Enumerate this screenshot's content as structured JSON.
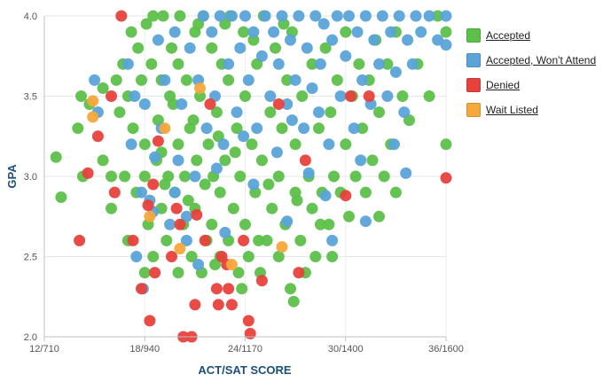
{
  "chart_data": {
    "type": "scatter",
    "xlabel": "ACT/SAT SCORE",
    "ylabel": "GPA",
    "xlim": [
      12,
      36
    ],
    "ylim": [
      2.0,
      4.0
    ],
    "x_ticks": [
      {
        "value": 12,
        "label": "12/710"
      },
      {
        "value": 18,
        "label": "18/940"
      },
      {
        "value": 24,
        "label": "24/1170"
      },
      {
        "value": 30,
        "label": "30/1400"
      },
      {
        "value": 36,
        "label": "36/1600"
      }
    ],
    "y_ticks": [
      {
        "value": 2.0,
        "label": "2.0"
      },
      {
        "value": 2.5,
        "label": "2.5"
      },
      {
        "value": 3.0,
        "label": "3.0"
      },
      {
        "value": 3.5,
        "label": "3.5"
      },
      {
        "value": 4.0,
        "label": "4.0"
      }
    ],
    "grid": true,
    "legend_position": "right",
    "series": [
      {
        "name": "Accepted",
        "color": "#5cc04a",
        "points": [
          [
            12.7,
            3.12
          ],
          [
            13.0,
            2.87
          ],
          [
            14.0,
            3.3
          ],
          [
            14.2,
            3.5
          ],
          [
            14.3,
            3.0
          ],
          [
            14.7,
            3.45
          ],
          [
            15.5,
            3.55
          ],
          [
            15.5,
            3.1
          ],
          [
            16.0,
            2.8
          ],
          [
            16.0,
            3.0
          ],
          [
            16.3,
            3.6
          ],
          [
            16.5,
            3.4
          ],
          [
            16.7,
            3.7
          ],
          [
            16.8,
            3.0
          ],
          [
            17.0,
            2.6
          ],
          [
            17.0,
            3.5
          ],
          [
            17.2,
            3.9
          ],
          [
            17.3,
            3.3
          ],
          [
            17.5,
            2.9
          ],
          [
            17.6,
            3.8
          ],
          [
            17.8,
            3.6
          ],
          [
            18.0,
            3.0
          ],
          [
            18.0,
            3.2
          ],
          [
            18.0,
            2.4
          ],
          [
            18.1,
            3.95
          ],
          [
            18.2,
            2.7
          ],
          [
            18.4,
            3.7
          ],
          [
            18.5,
            2.5
          ],
          [
            18.5,
            4.0
          ],
          [
            18.8,
            3.35
          ],
          [
            19.0,
            2.8
          ],
          [
            19.0,
            3.15
          ],
          [
            19.0,
            3.6
          ],
          [
            19.1,
            4.0
          ],
          [
            19.3,
            2.6
          ],
          [
            19.4,
            3.0
          ],
          [
            19.5,
            3.5
          ],
          [
            19.6,
            3.8
          ],
          [
            19.8,
            2.9
          ],
          [
            20.0,
            2.4
          ],
          [
            20.0,
            3.2
          ],
          [
            20.0,
            3.7
          ],
          [
            20.1,
            4.0
          ],
          [
            20.3,
            2.7
          ],
          [
            20.4,
            3.0
          ],
          [
            20.5,
            3.6
          ],
          [
            20.7,
            3.3
          ],
          [
            20.8,
            2.5
          ],
          [
            21.0,
            2.8
          ],
          [
            21.0,
            3.9
          ],
          [
            21.1,
            3.1
          ],
          [
            21.3,
            3.5
          ],
          [
            21.4,
            2.4
          ],
          [
            21.5,
            4.0
          ],
          [
            21.7,
            2.6
          ],
          [
            21.8,
            3.2
          ],
          [
            22.0,
            2.7
          ],
          [
            22.0,
            3.8
          ],
          [
            22.1,
            3.0
          ],
          [
            22.3,
            3.4
          ],
          [
            22.5,
            2.5
          ],
          [
            22.5,
            2.9
          ],
          [
            22.6,
            3.7
          ],
          [
            22.8,
            3.1
          ],
          [
            23.0,
            2.6
          ],
          [
            23.0,
            3.6
          ],
          [
            23.1,
            4.0
          ],
          [
            23.3,
            2.8
          ],
          [
            23.5,
            3.3
          ],
          [
            23.6,
            2.4
          ],
          [
            23.7,
            3.0
          ],
          [
            23.9,
            3.9
          ],
          [
            24.0,
            2.7
          ],
          [
            24.0,
            3.5
          ],
          [
            24.2,
            2.5
          ],
          [
            24.4,
            3.2
          ],
          [
            24.6,
            2.9
          ],
          [
            24.7,
            3.7
          ],
          [
            24.9,
            2.4
          ],
          [
            25.0,
            3.1
          ],
          [
            25.1,
            4.0
          ],
          [
            25.3,
            2.6
          ],
          [
            25.5,
            3.4
          ],
          [
            25.6,
            2.8
          ],
          [
            25.8,
            3.8
          ],
          [
            26.0,
            2.5
          ],
          [
            26.0,
            3.0
          ],
          [
            26.2,
            3.3
          ],
          [
            26.4,
            2.7
          ],
          [
            26.5,
            3.6
          ],
          [
            26.7,
            2.3
          ],
          [
            26.8,
            3.9
          ],
          [
            27.0,
            2.9
          ],
          [
            27.0,
            3.2
          ],
          [
            27.3,
            2.6
          ],
          [
            27.4,
            3.5
          ],
          [
            27.6,
            2.4
          ],
          [
            27.8,
            3.0
          ],
          [
            28.0,
            2.8
          ],
          [
            28.0,
            3.7
          ],
          [
            28.2,
            2.5
          ],
          [
            28.4,
            3.3
          ],
          [
            28.6,
            2.9
          ],
          [
            28.8,
            3.8
          ],
          [
            29.0,
            2.7
          ],
          [
            29.1,
            3.4
          ],
          [
            29.3,
            3.0
          ],
          [
            29.5,
            3.6
          ],
          [
            29.7,
            2.9
          ],
          [
            30.0,
            3.2
          ],
          [
            30.0,
            3.9
          ],
          [
            30.2,
            2.75
          ],
          [
            30.4,
            3.5
          ],
          [
            30.6,
            3.0
          ],
          [
            30.8,
            3.7
          ],
          [
            31.0,
            3.3
          ],
          [
            31.2,
            2.9
          ],
          [
            31.4,
            3.6
          ],
          [
            31.6,
            3.1
          ],
          [
            31.8,
            3.85
          ],
          [
            32.0,
            2.75
          ],
          [
            32.0,
            3.4
          ],
          [
            32.3,
            3.0
          ],
          [
            32.5,
            3.7
          ],
          [
            32.7,
            3.2
          ],
          [
            33.0,
            3.9
          ],
          [
            33.0,
            2.9
          ],
          [
            33.4,
            3.5
          ],
          [
            33.8,
            3.35
          ],
          [
            34.3,
            3.7
          ],
          [
            35.0,
            3.5
          ],
          [
            36.0,
            3.2
          ],
          [
            36.0,
            3.9
          ],
          [
            35.5,
            4.0
          ],
          [
            21.2,
            3.95
          ],
          [
            22.8,
            3.95
          ],
          [
            24.5,
            3.85
          ],
          [
            26.3,
            3.95
          ],
          [
            19.7,
            3.45
          ],
          [
            20.9,
            3.35
          ],
          [
            22.4,
            3.25
          ],
          [
            23.4,
            3.15
          ],
          [
            25.4,
            2.95
          ],
          [
            27.1,
            2.85
          ],
          [
            28.5,
            2.7
          ],
          [
            29.2,
            2.5
          ],
          [
            23.8,
            2.3
          ],
          [
            26.9,
            2.22
          ],
          [
            22.2,
            2.45
          ],
          [
            24.8,
            2.6
          ],
          [
            21.6,
            2.95
          ],
          [
            20.6,
            2.85
          ],
          [
            19.2,
            2.95
          ],
          [
            18.7,
            3.1
          ]
        ]
      },
      {
        "name": "Accepted, Won't Attend",
        "color": "#5ba3d9",
        "points": [
          [
            15.0,
            3.6
          ],
          [
            15.2,
            3.4
          ],
          [
            17.0,
            3.7
          ],
          [
            17.2,
            3.2
          ],
          [
            17.4,
            3.5
          ],
          [
            17.5,
            2.5
          ],
          [
            17.8,
            2.9
          ],
          [
            18.0,
            3.45
          ],
          [
            18.3,
            2.85
          ],
          [
            18.8,
            3.85
          ],
          [
            19.0,
            3.3
          ],
          [
            19.2,
            3.6
          ],
          [
            19.5,
            2.7
          ],
          [
            19.8,
            3.9
          ],
          [
            20.0,
            3.1
          ],
          [
            20.2,
            3.45
          ],
          [
            20.5,
            2.75
          ],
          [
            20.7,
            3.8
          ],
          [
            21.0,
            3.0
          ],
          [
            21.2,
            3.6
          ],
          [
            21.5,
            4.0
          ],
          [
            21.7,
            3.3
          ],
          [
            22.0,
            3.9
          ],
          [
            22.2,
            3.5
          ],
          [
            22.5,
            4.0
          ],
          [
            22.7,
            3.2
          ],
          [
            23.0,
            3.7
          ],
          [
            23.2,
            4.0
          ],
          [
            23.5,
            3.4
          ],
          [
            23.7,
            3.8
          ],
          [
            24.0,
            4.0
          ],
          [
            24.2,
            3.6
          ],
          [
            24.5,
            3.9
          ],
          [
            24.7,
            3.3
          ],
          [
            25.0,
            3.75
          ],
          [
            25.2,
            4.0
          ],
          [
            25.5,
            3.5
          ],
          [
            25.7,
            3.9
          ],
          [
            26.0,
            3.7
          ],
          [
            26.2,
            4.0
          ],
          [
            26.5,
            3.45
          ],
          [
            26.7,
            3.85
          ],
          [
            27.0,
            3.6
          ],
          [
            27.2,
            4.0
          ],
          [
            27.5,
            3.3
          ],
          [
            27.7,
            3.8
          ],
          [
            28.0,
            3.55
          ],
          [
            28.2,
            4.0
          ],
          [
            28.5,
            3.7
          ],
          [
            28.7,
            3.95
          ],
          [
            29.0,
            3.2
          ],
          [
            29.2,
            3.85
          ],
          [
            29.5,
            4.0
          ],
          [
            29.7,
            3.5
          ],
          [
            30.0,
            3.75
          ],
          [
            30.2,
            4.0
          ],
          [
            30.5,
            3.3
          ],
          [
            30.7,
            3.9
          ],
          [
            31.0,
            3.6
          ],
          [
            31.2,
            4.0
          ],
          [
            31.5,
            3.45
          ],
          [
            31.7,
            3.85
          ],
          [
            32.0,
            3.7
          ],
          [
            32.2,
            4.0
          ],
          [
            32.5,
            3.5
          ],
          [
            32.7,
            3.9
          ],
          [
            33.0,
            3.65
          ],
          [
            33.2,
            4.0
          ],
          [
            33.5,
            3.4
          ],
          [
            33.7,
            3.85
          ],
          [
            34.0,
            3.7
          ],
          [
            34.2,
            4.0
          ],
          [
            34.5,
            3.9
          ],
          [
            35.0,
            4.0
          ],
          [
            35.5,
            3.85
          ],
          [
            36.0,
            4.0
          ],
          [
            36.0,
            3.82
          ],
          [
            33.6,
            3.02
          ],
          [
            31.2,
            2.72
          ],
          [
            29.2,
            2.6
          ],
          [
            28.8,
            2.88
          ],
          [
            26.5,
            2.72
          ],
          [
            24.5,
            2.95
          ],
          [
            22.8,
            2.65
          ],
          [
            21.2,
            2.45
          ],
          [
            20.5,
            2.6
          ],
          [
            19.8,
            2.9
          ],
          [
            18.5,
            2.78
          ],
          [
            18.6,
            3.12
          ],
          [
            17.9,
            2.3
          ],
          [
            27.8,
            3.02
          ],
          [
            30.9,
            3.1
          ],
          [
            32.9,
            3.2
          ],
          [
            25.9,
            3.15
          ],
          [
            23.9,
            3.25
          ],
          [
            22.3,
            3.05
          ],
          [
            26.8,
            3.35
          ],
          [
            28.4,
            3.4
          ]
        ]
      },
      {
        "name": "Denied",
        "color": "#e8413c",
        "points": [
          [
            16.6,
            4.0
          ],
          [
            14.6,
            3.02
          ],
          [
            14.1,
            2.6
          ],
          [
            16.0,
            3.5
          ],
          [
            17.3,
            2.6
          ],
          [
            17.8,
            2.3
          ],
          [
            18.2,
            2.82
          ],
          [
            18.3,
            2.1
          ],
          [
            18.5,
            2.95
          ],
          [
            18.6,
            2.4
          ],
          [
            18.8,
            3.22
          ],
          [
            19.6,
            2.5
          ],
          [
            19.9,
            2.8
          ],
          [
            20.3,
            2.0
          ],
          [
            20.8,
            2.0
          ],
          [
            21.0,
            2.2
          ],
          [
            21.1,
            2.76
          ],
          [
            21.6,
            2.6
          ],
          [
            21.9,
            3.45
          ],
          [
            22.3,
            2.3
          ],
          [
            22.4,
            2.2
          ],
          [
            22.6,
            2.5
          ],
          [
            23.0,
            2.3
          ],
          [
            23.2,
            2.2
          ],
          [
            23.9,
            2.6
          ],
          [
            24.2,
            2.1
          ],
          [
            24.3,
            2.02
          ],
          [
            25.0,
            2.35
          ],
          [
            26.0,
            3.45
          ],
          [
            27.2,
            2.4
          ],
          [
            27.6,
            3.1
          ],
          [
            30.0,
            2.88
          ],
          [
            30.3,
            3.5
          ],
          [
            31.4,
            3.5
          ],
          [
            36.0,
            2.99
          ],
          [
            16.2,
            2.9
          ],
          [
            15.2,
            3.25
          ],
          [
            22.9,
            2.45
          ],
          [
            20.1,
            2.7
          ]
        ]
      },
      {
        "name": "Wait Listed",
        "color": "#f5a83b",
        "points": [
          [
            14.9,
            3.47
          ],
          [
            14.9,
            3.37
          ],
          [
            18.3,
            2.75
          ],
          [
            20.1,
            2.55
          ],
          [
            21.3,
            3.55
          ],
          [
            23.2,
            2.45
          ],
          [
            26.2,
            2.56
          ],
          [
            19.2,
            3.3
          ]
        ]
      }
    ]
  }
}
